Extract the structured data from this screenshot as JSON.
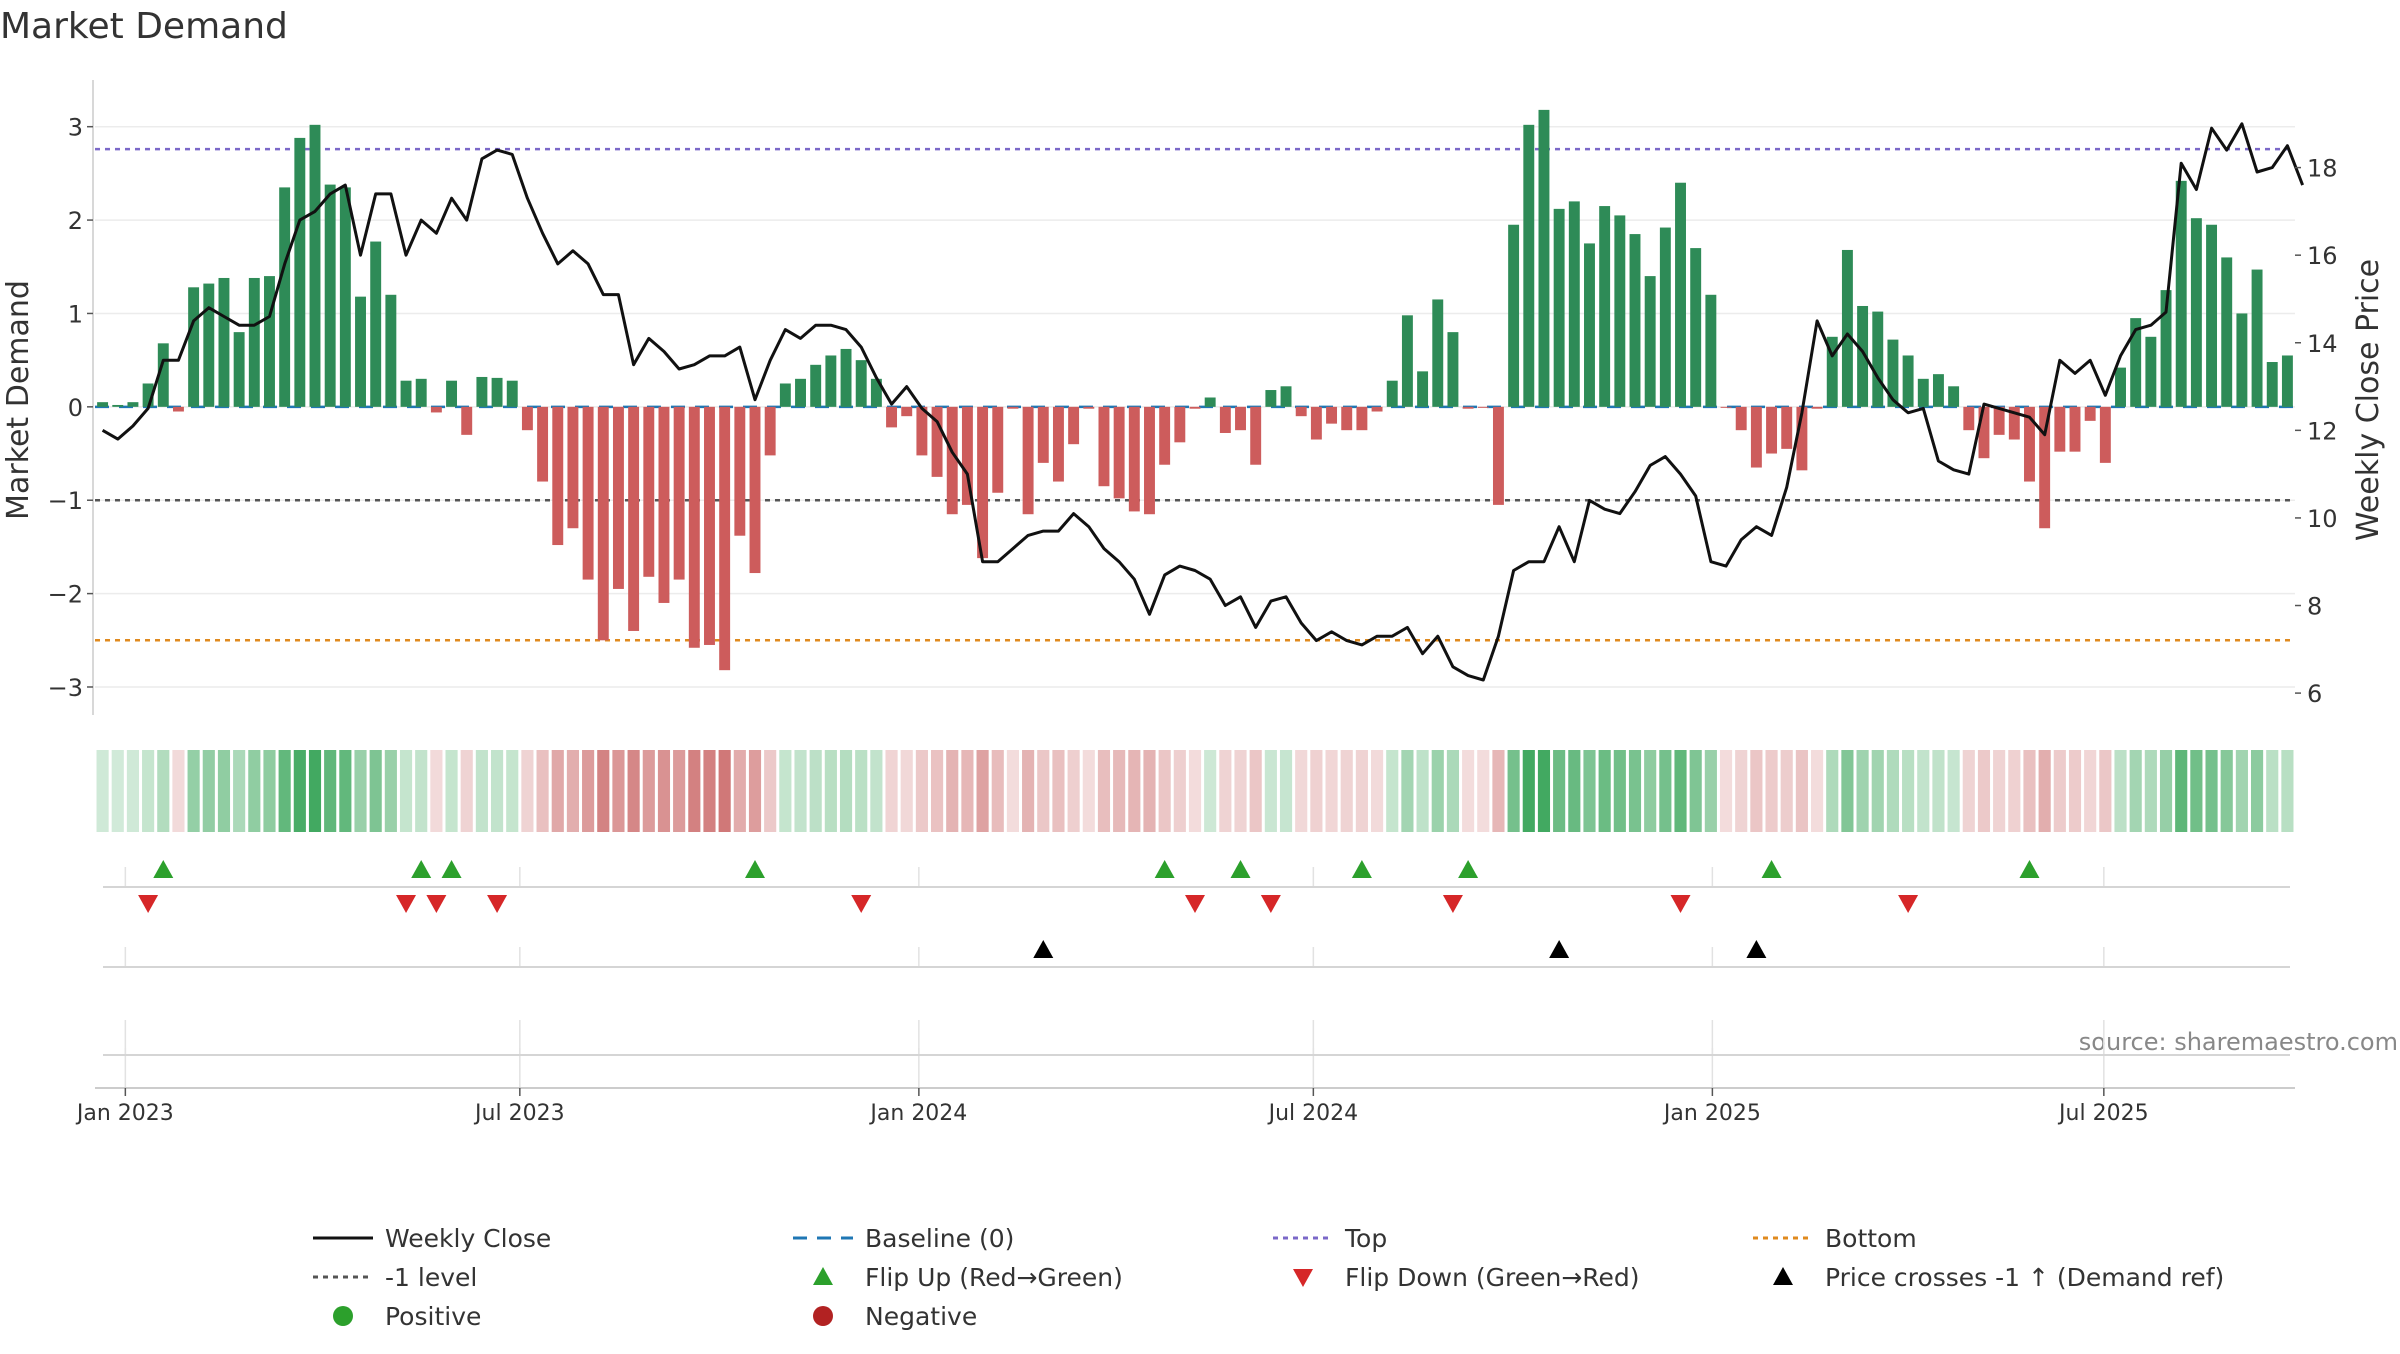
{
  "chart_data": {
    "type": "bar",
    "title": "Market Demand",
    "ylabel": "Market Demand",
    "y2label": "Weekly Close Price",
    "source": "source: sharemaestro.com",
    "ylim": [
      -3.3,
      3.5
    ],
    "y2lim": [
      5.5,
      20.0
    ],
    "yticks": [
      -3,
      -2,
      -1,
      0,
      1,
      2,
      3
    ],
    "y2ticks": [
      6,
      8,
      10,
      12,
      14,
      16,
      18
    ],
    "reference_lines": {
      "baseline": 0,
      "top": 2.76,
      "minus_one": -1,
      "bottom": -2.5
    },
    "x_tick_labels": [
      {
        "label": "Jan 2023",
        "week": 1
      },
      {
        "label": "Jul 2023",
        "week": 27
      },
      {
        "label": "Jan 2024",
        "week": 53.3
      },
      {
        "label": "Jul 2024",
        "week": 79.3
      },
      {
        "label": "Jan 2025",
        "week": 105.6
      },
      {
        "label": "Jul 2025",
        "week": 131.4
      }
    ],
    "weeks": 145,
    "start_week_offset": -1,
    "series": [
      {
        "name": "Market Demand",
        "values": [
          0.05,
          0.02,
          0.05,
          0.25,
          0.68,
          -0.05,
          1.28,
          1.32,
          1.38,
          0.8,
          1.38,
          1.4,
          2.35,
          2.88,
          3.02,
          2.38,
          2.35,
          1.18,
          1.77,
          1.2,
          0.28,
          0.3,
          -0.06,
          0.28,
          -0.3,
          0.32,
          0.31,
          0.28,
          -0.25,
          -0.8,
          -1.48,
          -1.3,
          -1.85,
          -2.5,
          -1.95,
          -2.4,
          -1.82,
          -2.1,
          -1.85,
          -2.58,
          -2.55,
          -2.82,
          -1.38,
          -1.78,
          -0.52,
          0.25,
          0.3,
          0.45,
          0.55,
          0.62,
          0.5,
          0.3,
          -0.22,
          -0.1,
          -0.52,
          -0.75,
          -1.15,
          -1.05,
          -1.62,
          -0.92,
          -0.02,
          -1.15,
          -0.6,
          -0.8,
          -0.4,
          -0.02,
          -0.85,
          -0.98,
          -1.12,
          -1.15,
          -0.62,
          -0.38,
          -0.02,
          0.1,
          -0.28,
          -0.25,
          -0.62,
          0.18,
          0.22,
          -0.1,
          -0.35,
          -0.18,
          -0.25,
          -0.25,
          -0.05,
          0.28,
          0.98,
          0.38,
          1.15,
          0.8,
          -0.02,
          -0.01,
          -1.05,
          1.95,
          3.02,
          3.18,
          2.12,
          2.2,
          1.75,
          2.15,
          2.05,
          1.85,
          1.4,
          1.92,
          2.4,
          1.7,
          1.2,
          -0.01,
          -0.25,
          -0.65,
          -0.5,
          -0.45,
          -0.68,
          -0.02,
          0.75,
          1.68,
          1.08,
          1.02,
          0.72,
          0.55,
          0.3,
          0.35,
          0.22,
          -0.25,
          -0.55,
          -0.3,
          -0.35,
          -0.8,
          -1.3,
          -0.48,
          -0.48,
          -0.15,
          -0.6,
          0.42,
          0.95,
          0.75,
          1.25,
          2.42,
          2.02,
          1.95,
          1.6,
          1.0,
          1.47,
          0.48,
          0.55
        ]
      },
      {
        "name": "Weekly Close",
        "values": [
          12.0,
          11.8,
          12.1,
          12.5,
          13.6,
          13.6,
          14.5,
          14.8,
          14.6,
          14.4,
          14.4,
          14.6,
          15.8,
          16.8,
          17.0,
          17.4,
          17.6,
          16.0,
          17.4,
          17.4,
          16.0,
          16.8,
          16.5,
          17.3,
          16.8,
          18.2,
          18.4,
          18.3,
          17.3,
          16.5,
          15.8,
          16.1,
          15.8,
          15.1,
          15.1,
          13.5,
          14.1,
          13.8,
          13.4,
          13.5,
          13.7,
          13.7,
          13.9,
          12.7,
          13.6,
          14.3,
          14.1,
          14.4,
          14.4,
          14.3,
          13.9,
          13.2,
          12.6,
          13.0,
          12.5,
          12.2,
          11.5,
          11.0,
          9.0,
          9.0,
          9.3,
          9.6,
          9.7,
          9.7,
          10.1,
          9.8,
          9.3,
          9.0,
          8.6,
          7.8,
          8.7,
          8.9,
          8.8,
          8.6,
          8.0,
          8.2,
          7.5,
          8.1,
          8.2,
          7.6,
          7.2,
          7.4,
          7.2,
          7.1,
          7.3,
          7.3,
          7.5,
          6.9,
          7.3,
          6.6,
          6.4,
          6.3,
          7.3,
          8.8,
          9.0,
          9.0,
          9.8,
          9.0,
          10.4,
          10.2,
          10.1,
          10.6,
          11.2,
          11.4,
          11.0,
          10.5,
          9.0,
          8.9,
          9.5,
          9.8,
          9.6,
          10.7,
          12.4,
          14.5,
          13.7,
          14.2,
          13.8,
          13.2,
          12.7,
          12.4,
          12.5,
          11.3,
          11.1,
          11.0,
          12.6,
          12.5,
          12.4,
          12.3,
          11.9,
          13.6,
          13.3,
          13.6,
          12.8,
          13.7,
          14.3,
          14.4,
          14.7,
          18.1,
          17.5,
          18.9,
          18.4,
          19.0,
          17.9,
          18.0,
          18.5,
          17.6
        ]
      }
    ],
    "flip_up_weeks": [
      4,
      21,
      23,
      43,
      70,
      75,
      83,
      90,
      110,
      127
    ],
    "flip_down_weeks": [
      3,
      20,
      22,
      26,
      50,
      72,
      77,
      89,
      104,
      119
    ],
    "price_cross_weeks": [
      62,
      96,
      109
    ],
    "legend": {
      "position": "bottom",
      "items": [
        {
          "label": "Weekly Close",
          "symbol": "line-solid",
          "color": "#111111"
        },
        {
          "label": "Baseline (0)",
          "symbol": "line-dashed",
          "color": "#1f77b4"
        },
        {
          "label": "Top",
          "symbol": "line-dotted",
          "color": "#7b68c8"
        },
        {
          "label": "Bottom",
          "symbol": "line-dotted",
          "color": "#e08a1e"
        },
        {
          "label": "-1 level",
          "symbol": "line-dotted",
          "color": "#555555"
        },
        {
          "label": "Flip Up (Red→Green)",
          "symbol": "triangle-up",
          "color": "#2ca02c"
        },
        {
          "label": "Flip Down (Green→Red)",
          "symbol": "triangle-down",
          "color": "#d62728"
        },
        {
          "label": "Price crosses -1 ↑ (Demand ref)",
          "symbol": "triangle-up",
          "color": "#000000"
        },
        {
          "label": "Positive",
          "symbol": "circle",
          "color": "#2ca02c"
        },
        {
          "label": "Negative",
          "symbol": "circle",
          "color": "#b22222"
        }
      ]
    },
    "colors": {
      "positive_bar": "#2e8b57",
      "negative_bar": "#cd5c5c",
      "price_line": "#111111",
      "baseline": "#1f77b4",
      "top": "#7b68c8",
      "minus_one": "#555555",
      "bottom": "#e08a1e",
      "flip_up": "#2ca02c",
      "flip_down": "#d62728",
      "price_cross": "#000000"
    }
  }
}
